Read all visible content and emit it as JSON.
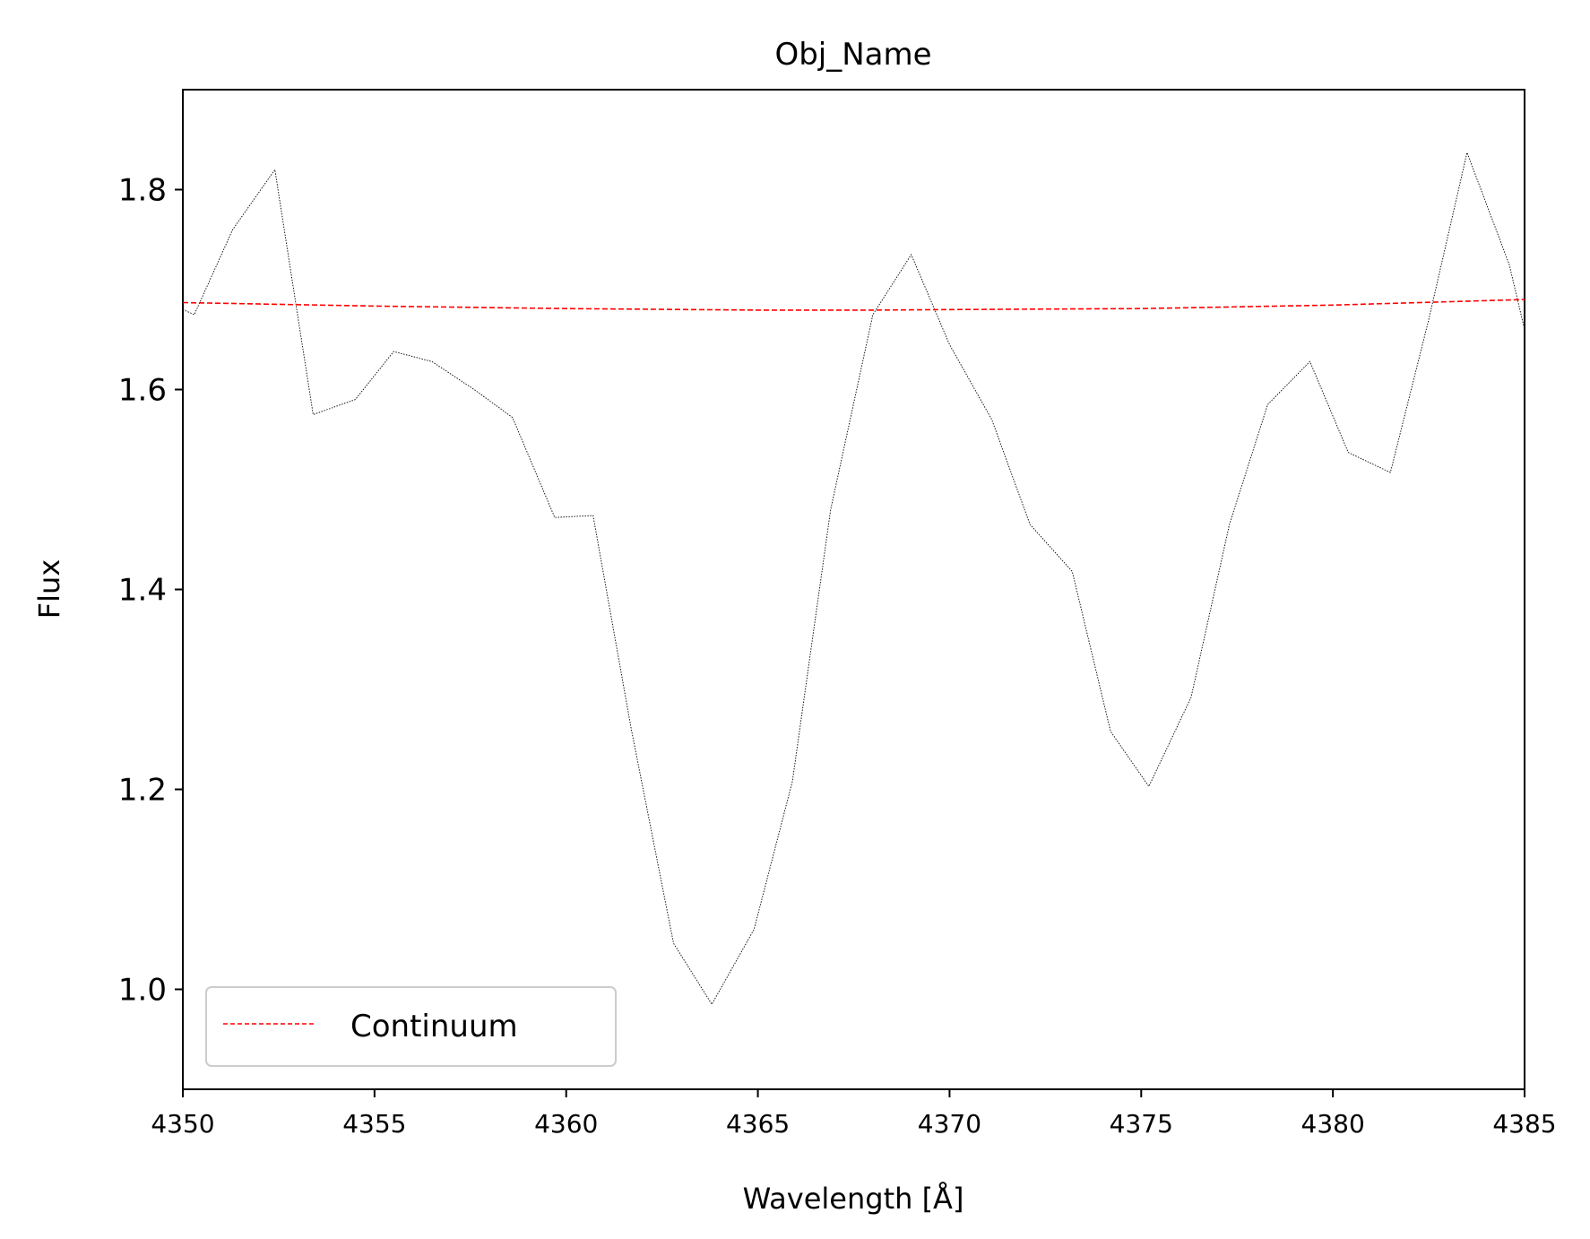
{
  "chart_data": {
    "type": "line",
    "title": "Obj_Name",
    "xlabel": "Wavelength [Å]",
    "ylabel": "Flux",
    "xlim": [
      4350,
      4385
    ],
    "ylim": [
      0.9,
      1.9
    ],
    "xticks": [
      4350,
      4355,
      4360,
      4365,
      4370,
      4375,
      4380,
      4385
    ],
    "yticks": [
      1.0,
      1.2,
      1.4,
      1.6,
      1.8
    ],
    "grid": false,
    "legend": {
      "placement": "lower-left",
      "entries": [
        "Continuum"
      ]
    },
    "series": [
      {
        "role": "spectrum",
        "color": "#000000",
        "style": "dotted",
        "points": [
          [
            4350.0,
            1.68
          ],
          [
            4350.3,
            1.675
          ],
          [
            4351.3,
            1.76
          ],
          [
            4352.4,
            1.82
          ],
          [
            4353.4,
            1.575
          ],
          [
            4354.5,
            1.59
          ],
          [
            4355.5,
            1.638
          ],
          [
            4356.5,
            1.628
          ],
          [
            4357.6,
            1.6
          ],
          [
            4358.6,
            1.572
          ],
          [
            4359.7,
            1.472
          ],
          [
            4360.7,
            1.474
          ],
          [
            4361.7,
            1.26
          ],
          [
            4362.8,
            1.046
          ],
          [
            4363.8,
            0.985
          ],
          [
            4364.9,
            1.06
          ],
          [
            4365.9,
            1.208
          ],
          [
            4366.9,
            1.48
          ],
          [
            4368.0,
            1.675
          ],
          [
            4369.0,
            1.735
          ],
          [
            4370.0,
            1.645
          ],
          [
            4371.1,
            1.57
          ],
          [
            4372.1,
            1.465
          ],
          [
            4373.2,
            1.418
          ],
          [
            4374.2,
            1.258
          ],
          [
            4375.2,
            1.203
          ],
          [
            4376.3,
            1.292
          ],
          [
            4377.3,
            1.465
          ],
          [
            4378.3,
            1.585
          ],
          [
            4379.4,
            1.628
          ],
          [
            4380.4,
            1.537
          ],
          [
            4381.5,
            1.517
          ],
          [
            4382.5,
            1.67
          ],
          [
            4383.5,
            1.837
          ],
          [
            4384.6,
            1.725
          ],
          [
            4385.0,
            1.66
          ]
        ]
      },
      {
        "name": "Continuum",
        "color": "#ff0000",
        "style": "dashed",
        "points": [
          [
            4350.0,
            1.687
          ],
          [
            4355.0,
            1.6835
          ],
          [
            4360.0,
            1.681
          ],
          [
            4365.0,
            1.6795
          ],
          [
            4368.0,
            1.6795
          ],
          [
            4370.0,
            1.68
          ],
          [
            4375.0,
            1.681
          ],
          [
            4380.0,
            1.6845
          ],
          [
            4385.0,
            1.69
          ]
        ]
      }
    ]
  }
}
